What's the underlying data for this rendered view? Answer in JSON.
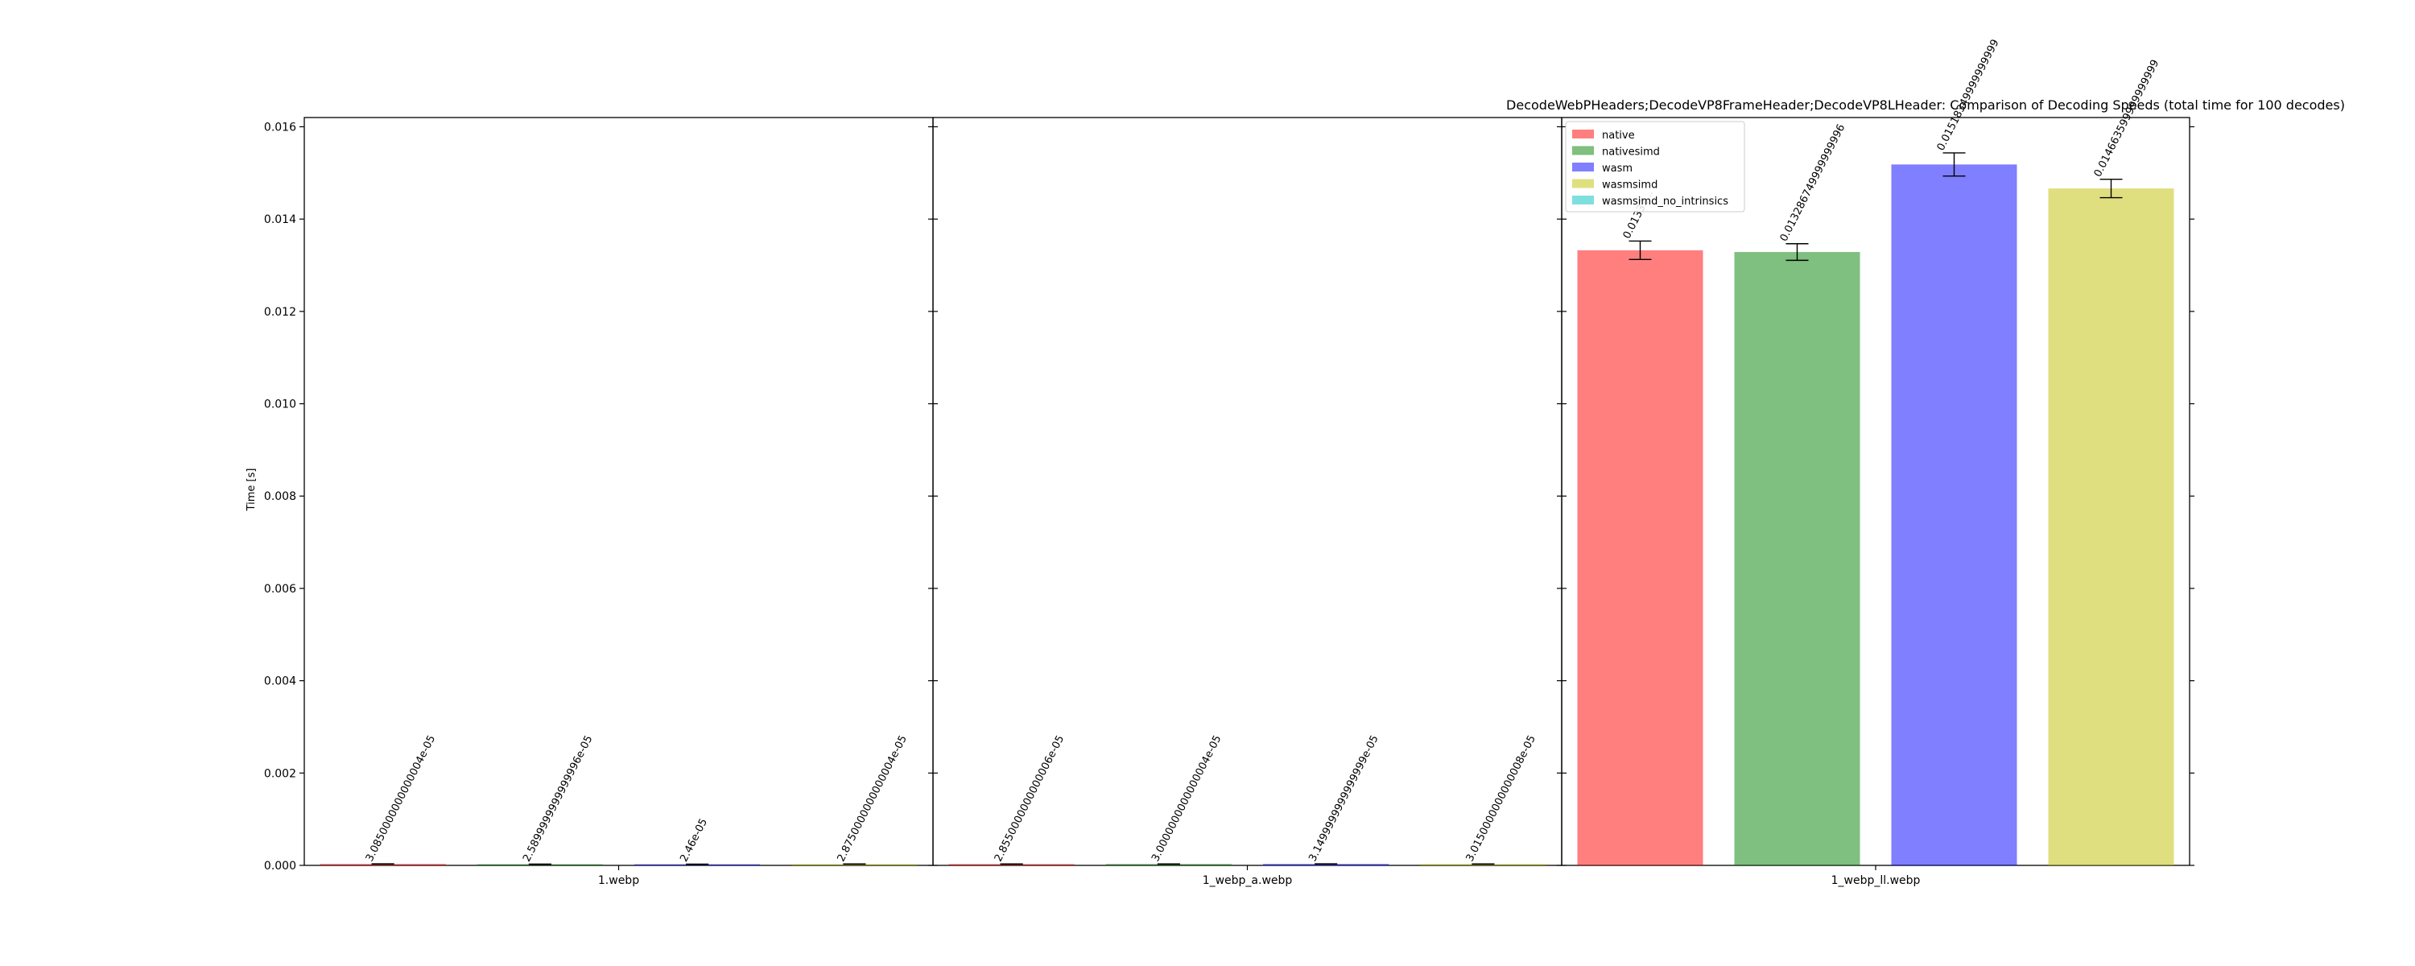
{
  "chart_data": {
    "type": "bar",
    "title": "DecodeWebPHeaders;DecodeVP8FrameHeader;DecodeVP8LHeader: Comparison of Decoding Speeds (total time for 100 decodes)",
    "ylabel": "Time [s]",
    "ylim": [
      0,
      0.0162
    ],
    "yticks": [
      "0.000",
      "0.002",
      "0.004",
      "0.006",
      "0.008",
      "0.010",
      "0.012",
      "0.014",
      "0.016"
    ],
    "legend_position": "upper-left of last panel",
    "series": [
      {
        "name": "native",
        "color": "#ff0000"
      },
      {
        "name": "nativesimd",
        "color": "#008000"
      },
      {
        "name": "wasm",
        "color": "#0000ff"
      },
      {
        "name": "wasmsimd",
        "color": "#bfbf00"
      },
      {
        "name": "wasmsimd_no_intrinsics",
        "color": "#00bfbf"
      }
    ],
    "panels": [
      {
        "xlabel": "1.webp",
        "bars": [
          {
            "series": "native",
            "value": 3.085e-05,
            "error": 2e-06,
            "label": "3.0850000000000004e-05"
          },
          {
            "series": "nativesimd",
            "value": 2.59e-05,
            "error": 2e-06,
            "label": "2.5899999999999996e-05"
          },
          {
            "series": "wasm",
            "value": 2.46e-05,
            "error": 2e-06,
            "label": "2.46e-05"
          },
          {
            "series": "wasmsimd",
            "value": 2.875e-05,
            "error": 2e-06,
            "label": "2.8750000000000004e-05"
          }
        ]
      },
      {
        "xlabel": "1_webp_a.webp",
        "bars": [
          {
            "series": "native",
            "value": 2.855e-05,
            "error": 2e-06,
            "label": "2.8550000000000006e-05"
          },
          {
            "series": "nativesimd",
            "value": 3e-05,
            "error": 2e-06,
            "label": "3.0000000000000004e-05"
          },
          {
            "series": "wasm",
            "value": 3.15e-05,
            "error": 2e-06,
            "label": "3.1499999999999999e-05"
          },
          {
            "series": "wasmsimd",
            "value": 3.015e-05,
            "error": 2e-06,
            "label": "3.0150000000000008e-05"
          }
        ]
      },
      {
        "xlabel": "1_webp_ll.webp",
        "bars": [
          {
            "series": "native",
            "value": 0.013325,
            "error": 0.0002,
            "label": "0.01332..."
          },
          {
            "series": "nativesimd",
            "value": 0.0132867,
            "error": 0.00018,
            "label": "0.013286749999999996"
          },
          {
            "series": "wasm",
            "value": 0.015183,
            "error": 0.00025,
            "label": "0.01518349999999999"
          },
          {
            "series": "wasmsimd",
            "value": 0.0146635,
            "error": 0.0002,
            "label": "0.014663599999999999"
          }
        ]
      }
    ]
  }
}
